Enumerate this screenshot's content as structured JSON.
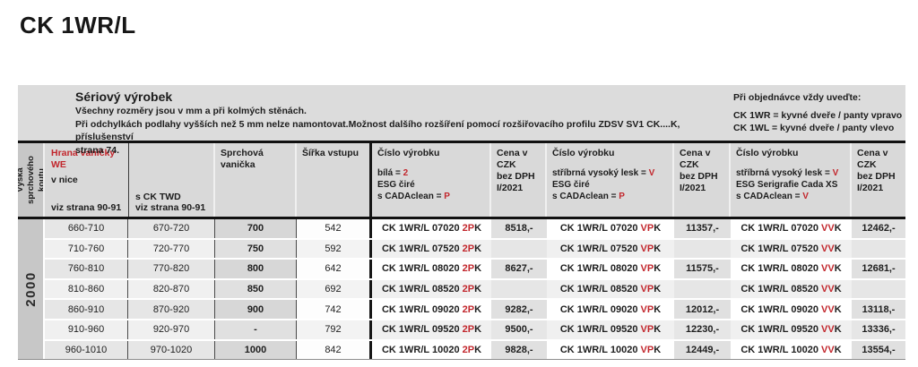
{
  "colors": {
    "accent_red": "#c2272d",
    "band_gray": "#dcdcdc",
    "header_gray": "#d9d9d9"
  },
  "page": {
    "title": "CK 1WR/L"
  },
  "info": {
    "heading": "Sériový výrobek",
    "body": "Všechny rozměry jsou v mm a při kolmých stěnách.\nPři odchylkách podlahy vyšších než 5 mm nelze namontovat.Možnost dalšího rozšíření pomocí rozšiřovacího profilu ZDSV SV1 CK....K, příslušenství\nstrana 74.",
    "order_heading": "Při objednávce vždy uveďte:",
    "order_body": "CK 1WR = kyvné dveře / panty vpravo\nCK 1WL = kyvné dveře / panty vlevo"
  },
  "header": {
    "height_axis": "Výška\nsprchového koutu",
    "hrana_title": "Hrana vaničky\nWE",
    "nice_label": "v nice",
    "nice_note": "viz strana 90-91",
    "twd_label": "s CK TWD",
    "twd_note": "viz strana 90-91",
    "vanicka": "Sprchová vanička",
    "vstup": "Šířka vstupu",
    "cena": "Cena v CZK\nbez DPH\nI/2021",
    "code1": {
      "title": "Číslo výrobku",
      "l1b": "bílá = ",
      "l1r": "2",
      "l2": "ESG čiré",
      "l3b": "s CADAclean = ",
      "l3r": "P"
    },
    "code2": {
      "title": "Číslo výrobku",
      "l1b": "stříbrná vysoký lesk = ",
      "l1r": "V",
      "l2": "ESG čiré",
      "l3b": "s CADAclean = ",
      "l3r": "P"
    },
    "code3": {
      "title": "Číslo výrobku",
      "l1b": "stříbrná vysoký lesk = ",
      "l1r": "V",
      "l2": "ESG Serigrafie Cada XS",
      "l3b": "s CADAclean = ",
      "l3r": "V"
    }
  },
  "table": {
    "height_value": "2000",
    "rows": [
      {
        "nice": "660-710",
        "twd": "670-720",
        "van": "700",
        "vstup": "542",
        "c1p": "CK 1WR/L 07020 ",
        "c1r": "2P",
        "c1k": "K",
        "p1": "8518,-",
        "c2p": "CK 1WR/L 07020 ",
        "c2r": "VP",
        "c2k": "K",
        "p2": "11357,-",
        "c3p": "CK 1WR/L 07020 ",
        "c3r": "VV",
        "c3k": "K",
        "p3": "12462,-"
      },
      {
        "nice": "710-760",
        "twd": "720-770",
        "van": "750",
        "vstup": "592",
        "c1p": "CK 1WR/L 07520 ",
        "c1r": "2P",
        "c1k": "K",
        "p1": "",
        "c2p": "CK 1WR/L 07520 ",
        "c2r": "VP",
        "c2k": "K",
        "p2": "",
        "c3p": "CK 1WR/L 07520 ",
        "c3r": "VV",
        "c3k": "K",
        "p3": ""
      },
      {
        "nice": "760-810",
        "twd": "770-820",
        "van": "800",
        "vstup": "642",
        "c1p": "CK 1WR/L 08020 ",
        "c1r": "2P",
        "c1k": "K",
        "p1": "8627,-",
        "c2p": "CK 1WR/L 08020 ",
        "c2r": "VP",
        "c2k": "K",
        "p2": "11575,-",
        "c3p": "CK 1WR/L 08020 ",
        "c3r": "VV",
        "c3k": "K",
        "p3": "12681,-"
      },
      {
        "nice": "810-860",
        "twd": "820-870",
        "van": "850",
        "vstup": "692",
        "c1p": "CK 1WR/L 08520 ",
        "c1r": "2P",
        "c1k": "K",
        "p1": "",
        "c2p": "CK 1WR/L 08520 ",
        "c2r": "VP",
        "c2k": "K",
        "p2": "",
        "c3p": "CK 1WR/L 08520 ",
        "c3r": "VV",
        "c3k": "K",
        "p3": ""
      },
      {
        "nice": "860-910",
        "twd": "870-920",
        "van": "900",
        "vstup": "742",
        "c1p": "CK 1WR/L 09020 ",
        "c1r": "2P",
        "c1k": "K",
        "p1": "9282,-",
        "c2p": "CK 1WR/L 09020 ",
        "c2r": "VP",
        "c2k": "K",
        "p2": "12012,-",
        "c3p": "CK 1WR/L 09020 ",
        "c3r": "VV",
        "c3k": "K",
        "p3": "13118,-"
      },
      {
        "nice": "910-960",
        "twd": "920-970",
        "van": "-",
        "vstup": "792",
        "c1p": "CK 1WR/L 09520 ",
        "c1r": "2P",
        "c1k": "K",
        "p1": "9500,-",
        "c2p": "CK 1WR/L 09520 ",
        "c2r": "VP",
        "c2k": "K",
        "p2": "12230,-",
        "c3p": "CK 1WR/L 09520 ",
        "c3r": "VV",
        "c3k": "K",
        "p3": "13336,-"
      },
      {
        "nice": "960-1010",
        "twd": "970-1020",
        "van": "1000",
        "vstup": "842",
        "c1p": "CK 1WR/L 10020 ",
        "c1r": "2P",
        "c1k": "K",
        "p1": "9828,-",
        "c2p": "CK 1WR/L 10020 ",
        "c2r": "VP",
        "c2k": "K",
        "p2": "12449,-",
        "c3p": "CK 1WR/L 10020 ",
        "c3r": "VV",
        "c3k": "K",
        "p3": "13554,-"
      }
    ]
  }
}
